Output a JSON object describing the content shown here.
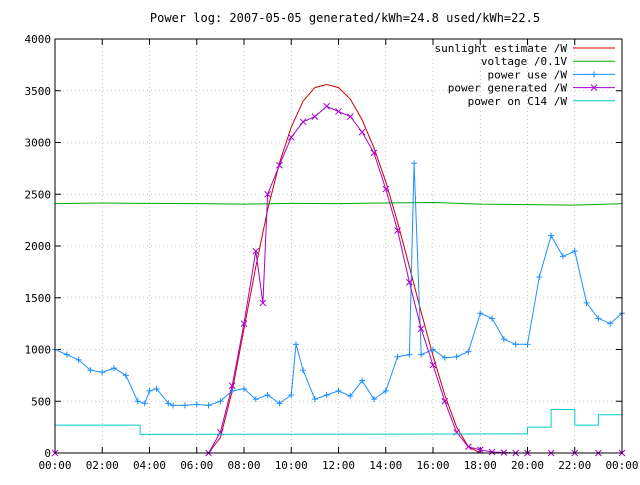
{
  "chart_data": {
    "type": "line",
    "title": "Power log: 2007-05-05 generated/kWh=24.8 used/kWh=22.5",
    "xlim": [
      0,
      24
    ],
    "ylim": [
      0,
      4000
    ],
    "x_ticks": [
      {
        "value": 0,
        "label": "00:00"
      },
      {
        "value": 2,
        "label": "02:00"
      },
      {
        "value": 4,
        "label": "04:00"
      },
      {
        "value": 6,
        "label": "06:00"
      },
      {
        "value": 8,
        "label": "08:00"
      },
      {
        "value": 10,
        "label": "10:00"
      },
      {
        "value": 12,
        "label": "12:00"
      },
      {
        "value": 14,
        "label": "14:00"
      },
      {
        "value": 16,
        "label": "16:00"
      },
      {
        "value": 18,
        "label": "18:00"
      },
      {
        "value": 20,
        "label": "20:00"
      },
      {
        "value": 22,
        "label": "22:00"
      },
      {
        "value": 24,
        "label": "00:00"
      }
    ],
    "y_ticks": [
      {
        "value": 0,
        "label": "0"
      },
      {
        "value": 500,
        "label": "500"
      },
      {
        "value": 1000,
        "label": "1000"
      },
      {
        "value": 1500,
        "label": "1500"
      },
      {
        "value": 2000,
        "label": "2000"
      },
      {
        "value": 2500,
        "label": "2500"
      },
      {
        "value": 3000,
        "label": "3000"
      },
      {
        "value": 3500,
        "label": "3500"
      },
      {
        "value": 4000,
        "label": "4000"
      }
    ],
    "grid": true,
    "legend_position": "top-right",
    "series": [
      {
        "name": "sunlight estimate /W",
        "color": "#cc0000",
        "marker": "none",
        "x": [
          6.5,
          7,
          7.5,
          8,
          8.5,
          9,
          9.5,
          10,
          10.5,
          11,
          11.5,
          12,
          12.5,
          13,
          13.5,
          14,
          14.5,
          15,
          15.5,
          16,
          16.5,
          17,
          17.5,
          18
        ],
        "y": [
          0,
          150,
          600,
          1200,
          1800,
          2350,
          2800,
          3150,
          3400,
          3530,
          3560,
          3530,
          3420,
          3220,
          2950,
          2620,
          2230,
          1800,
          1360,
          940,
          560,
          250,
          60,
          0
        ]
      },
      {
        "name": "voltage /0.1V",
        "color": "#00aa00",
        "marker": "none",
        "x": [
          0,
          2,
          4,
          6,
          8,
          10,
          12,
          14,
          16,
          18,
          20,
          22,
          24
        ],
        "y": [
          2410,
          2415,
          2412,
          2410,
          2405,
          2412,
          2410,
          2415,
          2420,
          2405,
          2400,
          2395,
          2410
        ]
      },
      {
        "name": "power use /W",
        "color": "#1e90ff",
        "marker": "plus",
        "x": [
          0,
          0.5,
          1,
          1.5,
          2,
          2.5,
          3,
          3.5,
          3.8,
          4,
          4.3,
          4.8,
          5,
          5.5,
          6,
          6.5,
          7,
          7.5,
          8,
          8.5,
          9,
          9.5,
          10,
          10.2,
          10.5,
          11,
          11.5,
          12,
          12.5,
          13,
          13.5,
          14,
          14.5,
          15,
          15.2,
          15.5,
          16,
          16.5,
          17,
          17.5,
          18,
          18.5,
          19,
          19.5,
          20,
          20.5,
          21,
          21.5,
          22,
          22.5,
          23,
          23.5,
          24
        ],
        "y": [
          1000,
          950,
          900,
          800,
          780,
          820,
          750,
          500,
          480,
          600,
          620,
          480,
          460,
          460,
          470,
          460,
          500,
          600,
          620,
          520,
          560,
          480,
          560,
          1050,
          800,
          520,
          560,
          600,
          550,
          700,
          520,
          600,
          930,
          950,
          2800,
          950,
          1000,
          920,
          930,
          980,
          1350,
          1300,
          1100,
          1050,
          1050,
          1700,
          2100,
          1900,
          1950,
          1450,
          1300,
          1250,
          1350
        ]
      },
      {
        "name": "power generated /W",
        "color": "#aa00cc",
        "marker": "x",
        "x": [
          0,
          6.5,
          7,
          7.5,
          8,
          8.5,
          8.8,
          9,
          9.5,
          10,
          10.5,
          11,
          11.5,
          12,
          12.5,
          13,
          13.5,
          14,
          14.5,
          15,
          15.5,
          16,
          16.5,
          17,
          17.5,
          18,
          18.5,
          19,
          19.5,
          20,
          21,
          22,
          23,
          24
        ],
        "y": [
          0,
          0,
          200,
          650,
          1250,
          1950,
          1450,
          2500,
          2780,
          3050,
          3200,
          3250,
          3350,
          3300,
          3250,
          3100,
          2900,
          2550,
          2150,
          1650,
          1200,
          850,
          500,
          200,
          60,
          30,
          10,
          5,
          0,
          0,
          0,
          0,
          0,
          0
        ]
      },
      {
        "name": "power on C14 /W",
        "color": "#00cccc",
        "marker": "none",
        "x": [
          0,
          3.6,
          3.6,
          20,
          20,
          21,
          21,
          22,
          22,
          23,
          23,
          24
        ],
        "y": [
          270,
          270,
          180,
          185,
          250,
          250,
          420,
          420,
          270,
          270,
          370,
          370
        ]
      }
    ]
  }
}
